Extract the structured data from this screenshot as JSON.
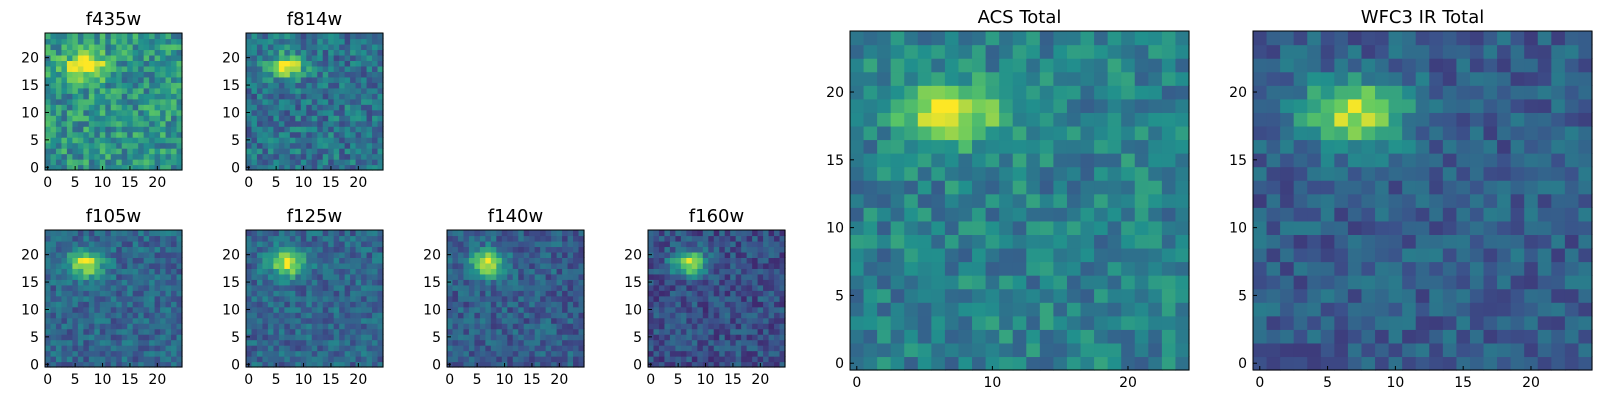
{
  "colormap": [
    "#440154",
    "#3b528b",
    "#21908d",
    "#5dc963",
    "#fde725"
  ],
  "chart_data": [
    {
      "type": "heatmap",
      "title": "f435w",
      "size": 25,
      "xticks": [
        "0",
        "5",
        "10",
        "15",
        "20"
      ],
      "yticks": [
        "0",
        "5",
        "10",
        "15",
        "20"
      ],
      "source": {
        "x": 7,
        "y": 18.5,
        "sx": 2.6,
        "sy": 1.6,
        "amp": 0.55
      },
      "base": 0.52,
      "noise": 0.2,
      "seed": 11
    },
    {
      "type": "heatmap",
      "title": "f814w",
      "size": 25,
      "xticks": [
        "0",
        "5",
        "10",
        "15",
        "20"
      ],
      "yticks": [
        "0",
        "5",
        "10",
        "15",
        "20"
      ],
      "source": {
        "x": 7,
        "y": 18.5,
        "sx": 2.2,
        "sy": 1.5,
        "amp": 0.6
      },
      "base": 0.38,
      "noise": 0.17,
      "seed": 23
    },
    {
      "type": "heatmap",
      "title": "f105w",
      "size": 25,
      "xticks": [
        "0",
        "5",
        "10",
        "15",
        "20"
      ],
      "yticks": [
        "0",
        "5",
        "10",
        "15",
        "20"
      ],
      "source": {
        "x": 7,
        "y": 18.5,
        "sx": 2.2,
        "sy": 1.7,
        "amp": 0.62
      },
      "base": 0.33,
      "noise": 0.13,
      "seed": 37
    },
    {
      "type": "heatmap",
      "title": "f125w",
      "size": 25,
      "xticks": [
        "0",
        "5",
        "10",
        "15",
        "20"
      ],
      "yticks": [
        "0",
        "5",
        "10",
        "15",
        "20"
      ],
      "source": {
        "x": 7,
        "y": 18.5,
        "sx": 2.2,
        "sy": 1.7,
        "amp": 0.62
      },
      "base": 0.33,
      "noise": 0.13,
      "seed": 41
    },
    {
      "type": "heatmap",
      "title": "f140w",
      "size": 25,
      "xticks": [
        "0",
        "5",
        "10",
        "15",
        "20"
      ],
      "yticks": [
        "0",
        "5",
        "10",
        "15",
        "20"
      ],
      "source": {
        "x": 7,
        "y": 18.5,
        "sx": 2.2,
        "sy": 1.7,
        "amp": 0.62
      },
      "base": 0.3,
      "noise": 0.13,
      "seed": 53
    },
    {
      "type": "heatmap",
      "title": "f160w",
      "size": 25,
      "xticks": [
        "0",
        "5",
        "10",
        "15",
        "20"
      ],
      "yticks": [
        "0",
        "5",
        "10",
        "15",
        "20"
      ],
      "source": {
        "x": 7,
        "y": 18.5,
        "sx": 2.1,
        "sy": 1.6,
        "amp": 0.65
      },
      "base": 0.25,
      "noise": 0.13,
      "seed": 67
    },
    {
      "type": "heatmap",
      "title": "ACS Total",
      "size": 25,
      "xticks": [
        "0",
        "10",
        "20"
      ],
      "yticks": [
        "0",
        "5",
        "10",
        "15",
        "20"
      ],
      "source": {
        "x": 7,
        "y": 18.5,
        "sx": 2.5,
        "sy": 1.6,
        "amp": 0.55
      },
      "base": 0.44,
      "noise": 0.15,
      "seed": 79
    },
    {
      "type": "heatmap",
      "title": "WFC3 IR Total",
      "size": 25,
      "xticks": [
        "0",
        "5",
        "10",
        "15",
        "20"
      ],
      "yticks": [
        "0",
        "5",
        "10",
        "15",
        "20"
      ],
      "source": {
        "x": 7,
        "y": 18.5,
        "sx": 2.6,
        "sy": 1.7,
        "amp": 0.62
      },
      "base": 0.3,
      "noise": 0.12,
      "seed": 97
    }
  ]
}
